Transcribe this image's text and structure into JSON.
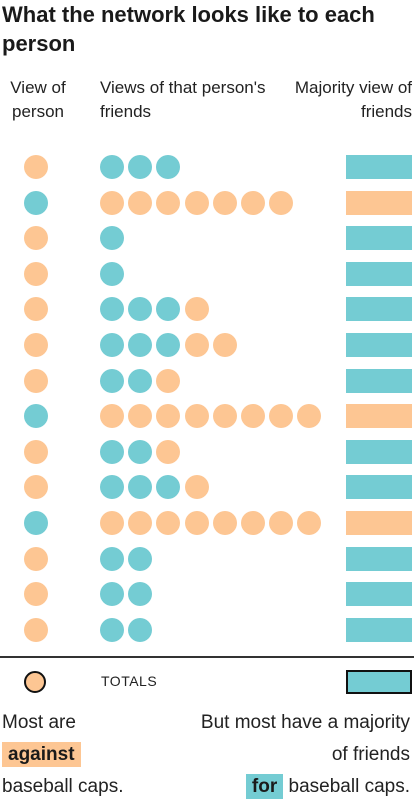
{
  "title": "What the network looks like to each person",
  "headers": {
    "person": "View of person",
    "friends": "Views of that person's friends",
    "majority": "Majority view of friends"
  },
  "colors": {
    "against": "#FDC693",
    "for": "#74CCD3"
  },
  "rows": [
    {
      "person": "against",
      "friends": [
        "for",
        "for",
        "for"
      ],
      "majority": "for"
    },
    {
      "person": "for",
      "friends": [
        "against",
        "against",
        "against",
        "against",
        "against",
        "against",
        "against"
      ],
      "majority": "against"
    },
    {
      "person": "against",
      "friends": [
        "for"
      ],
      "majority": "for"
    },
    {
      "person": "against",
      "friends": [
        "for"
      ],
      "majority": "for"
    },
    {
      "person": "against",
      "friends": [
        "for",
        "for",
        "for",
        "against"
      ],
      "majority": "for"
    },
    {
      "person": "against",
      "friends": [
        "for",
        "for",
        "for",
        "against",
        "against"
      ],
      "majority": "for"
    },
    {
      "person": "against",
      "friends": [
        "for",
        "for",
        "against"
      ],
      "majority": "for"
    },
    {
      "person": "for",
      "friends": [
        "against",
        "against",
        "against",
        "against",
        "against",
        "against",
        "against",
        "against"
      ],
      "majority": "against"
    },
    {
      "person": "against",
      "friends": [
        "for",
        "for",
        "against"
      ],
      "majority": "for"
    },
    {
      "person": "against",
      "friends": [
        "for",
        "for",
        "for",
        "against"
      ],
      "majority": "for"
    },
    {
      "person": "for",
      "friends": [
        "against",
        "against",
        "against",
        "against",
        "against",
        "against",
        "against",
        "against"
      ],
      "majority": "against"
    },
    {
      "person": "against",
      "friends": [
        "for",
        "for"
      ],
      "majority": "for"
    },
    {
      "person": "against",
      "friends": [
        "for",
        "for"
      ],
      "majority": "for"
    },
    {
      "person": "against",
      "friends": [
        "for",
        "for"
      ],
      "majority": "for"
    }
  ],
  "totals": {
    "label": "TOTALS",
    "person": "against",
    "majority": "for"
  },
  "notes": {
    "left_pre": "Most are",
    "left_highlight": "against",
    "left_post": "baseball caps.",
    "right_pre": "But most have a majority of friends",
    "right_highlight": "for",
    "right_post": "baseball caps."
  }
}
